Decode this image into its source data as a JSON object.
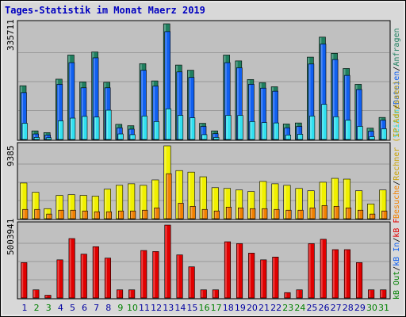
{
  "title": "Tages-Statistik im Monat Maerz 2019",
  "colors": {
    "frame_bg": "#D8D8D8",
    "panel_bg": "#C0C0C0",
    "title_text": "#0000C0",
    "anfragen": "#1F7F5F",
    "dateien": "#1060F0",
    "seiten": "#30E0F0",
    "rechner": "#F0F000",
    "besuche": "#F08000",
    "kb": "#E00000",
    "day_blue": "#0000A0",
    "day_green": "#008000"
  },
  "chart_data": [
    {
      "type": "bar",
      "panel": "requests",
      "ymax_label": "335711",
      "ymax": 335711,
      "categories": [
        "1",
        "2",
        "3",
        "4",
        "5",
        "6",
        "7",
        "8",
        "9",
        "10",
        "11",
        "12",
        "13",
        "14",
        "15",
        "16",
        "17",
        "18",
        "19",
        "20",
        "21",
        "22",
        "23",
        "24",
        "25",
        "26",
        "27",
        "28",
        "29",
        "30",
        "31"
      ],
      "weekend_days": [
        "2",
        "3",
        "9",
        "10",
        "16",
        "17",
        "23",
        "24",
        "30",
        "31"
      ],
      "series": [
        {
          "name": "Anfragen",
          "color": "#1F7F5F",
          "values": [
            156000,
            25000,
            20000,
            175000,
            245000,
            167000,
            254000,
            166000,
            44000,
            40000,
            220000,
            170000,
            335711,
            216000,
            201000,
            47000,
            25000,
            245000,
            228000,
            174000,
            165000,
            153000,
            45000,
            48000,
            239000,
            297000,
            250000,
            206000,
            160000,
            33000,
            64000
          ]
        },
        {
          "name": "Dateien",
          "color": "#1060F0",
          "values": [
            136000,
            16000,
            13000,
            160000,
            223000,
            150000,
            237000,
            150000,
            34000,
            30000,
            201000,
            155000,
            313000,
            196000,
            180000,
            38000,
            17000,
            223000,
            208000,
            160000,
            149000,
            140000,
            34000,
            38000,
            219000,
            277000,
            232000,
            186000,
            145000,
            24000,
            56000
          ]
        },
        {
          "name": "Seiten",
          "color": "#30E0F0",
          "values": [
            47000,
            6000,
            5000,
            54000,
            62000,
            67000,
            65000,
            85000,
            16000,
            14000,
            68000,
            52000,
            89000,
            70000,
            63000,
            14000,
            6000,
            70000,
            70000,
            52000,
            49000,
            48000,
            13000,
            15000,
            68000,
            102000,
            66000,
            56000,
            38000,
            8000,
            31000
          ]
        }
      ]
    },
    {
      "type": "bar",
      "panel": "visits",
      "ymax_label": "9385",
      "ymax": 9385,
      "categories": [
        "1",
        "2",
        "3",
        "4",
        "5",
        "6",
        "7",
        "8",
        "9",
        "10",
        "11",
        "12",
        "13",
        "14",
        "15",
        "16",
        "17",
        "18",
        "19",
        "20",
        "21",
        "22",
        "23",
        "24",
        "25",
        "26",
        "27",
        "28",
        "29",
        "30",
        "31"
      ],
      "series": [
        {
          "name": "Rechner (IP-Adressen)",
          "color": "#F0F000",
          "values": [
            4600,
            3400,
            1300,
            3000,
            3100,
            3000,
            2900,
            3800,
            4300,
            4500,
            4300,
            5000,
            9385,
            6200,
            6000,
            5400,
            4000,
            3900,
            3700,
            3500,
            4800,
            4500,
            4300,
            3900,
            3600,
            4700,
            5200,
            5100,
            3600,
            1900,
            3700
          ]
        },
        {
          "name": "Besuche",
          "color": "#F08000",
          "values": [
            1200,
            1200,
            600,
            1100,
            1100,
            1000,
            900,
            900,
            1000,
            1000,
            1100,
            1400,
            5800,
            2000,
            1600,
            1200,
            1000,
            1500,
            1400,
            1300,
            1300,
            1200,
            1100,
            1100,
            1400,
            1700,
            1600,
            1400,
            1100,
            600,
            1000
          ]
        }
      ]
    },
    {
      "type": "bar",
      "panel": "kb",
      "ymax_label": "5003941",
      "ymax": 5003941,
      "categories": [
        "1",
        "2",
        "3",
        "4",
        "5",
        "6",
        "7",
        "8",
        "9",
        "10",
        "11",
        "12",
        "13",
        "14",
        "15",
        "16",
        "17",
        "18",
        "19",
        "20",
        "21",
        "22",
        "23",
        "24",
        "25",
        "26",
        "27",
        "28",
        "29",
        "30",
        "31"
      ],
      "series": [
        {
          "name": "kB F",
          "color": "#E00000",
          "values": [
            2430000,
            560000,
            190000,
            2620000,
            4080000,
            3010000,
            3520000,
            2740000,
            560000,
            560000,
            3260000,
            3190000,
            5003941,
            2960000,
            2140000,
            560000,
            560000,
            3860000,
            3730000,
            3080000,
            2620000,
            2810000,
            370000,
            560000,
            3730000,
            4030000,
            3320000,
            3320000,
            2430000,
            560000,
            560000
          ]
        }
      ]
    }
  ],
  "legend": {
    "right_top": [
      "Anfragen",
      "/",
      "Dateien",
      "/",
      "Seiten"
    ],
    "right_middle": [
      "Rechner (IP-Adressen)",
      "/",
      "Besuche"
    ],
    "right_bottom": [
      "kB F",
      "/",
      "kB In",
      "/",
      "kB Out"
    ]
  }
}
